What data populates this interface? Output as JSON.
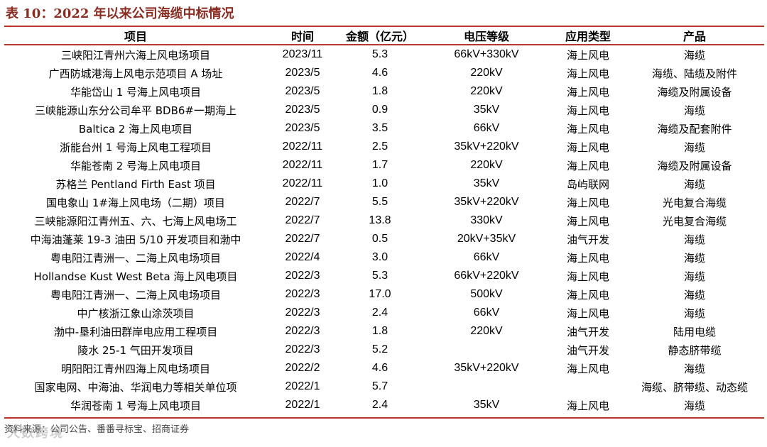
{
  "title": "表 10：2022 年以来公司海缆中标情况",
  "headers": [
    "项目",
    "时间",
    "金额（亿元）",
    "电压等级",
    "应用类型",
    "产品"
  ],
  "rows": [
    [
      "三峡阳江青州六海上风电场项目",
      "2023/11",
      "5.3",
      "66kV+330kV",
      "海上风电",
      "海缆"
    ],
    [
      "广西防城港海上风电示范项目 A 场址",
      "2023/5",
      "4.6",
      "220kV",
      "海上风电",
      "海缆、陆缆及附件"
    ],
    [
      "华能岱山 1 号海上风电项目",
      "2023/5",
      "1.8",
      "220kV",
      "海上风电",
      "海缆及附属设备"
    ],
    [
      "三峡能源山东分公司牟平 BDB6#一期海上",
      "2023/5",
      "0.9",
      "35kV",
      "海上风电",
      "海缆"
    ],
    [
      "Baltica 2 海上风电项目",
      "2023/5",
      "3.5",
      "66kV",
      "海上风电",
      "海缆及配套附件"
    ],
    [
      "浙能台州 1 号海上风电工程项目",
      "2022/11",
      "2.5",
      "35kV+220kV",
      "海上风电",
      "海缆"
    ],
    [
      "华能苍南 2 号海上风电项目",
      "2022/11",
      "1.7",
      "220kV",
      "海上风电",
      "海缆及附属设备"
    ],
    [
      "苏格兰 Pentland Firth East 项目",
      "2022/11",
      "1.0",
      "35kV",
      "岛屿联网",
      "海缆"
    ],
    [
      "国电象山 1#海上风电场（二期）项目",
      "2022/7",
      "5.5",
      "35kV+220kV",
      "海上风电",
      "光电复合海缆"
    ],
    [
      "三峡能源阳江青州五、六、七海上风电场工",
      "2022/7",
      "13.8",
      "330kV",
      "海上风电",
      "光电复合海缆"
    ],
    [
      "中海油蓬莱 19-3 油田 5/10 开发项目和渤中",
      "2022/7",
      "0.5",
      "20kV+35kV",
      "油气开发",
      "海缆"
    ],
    [
      "粤电阳江青洲一、二海上风电场项目",
      "2022/4",
      "3.0",
      "66kV",
      "海上风电",
      "海缆"
    ],
    [
      "Hollandse Kust West Beta 海上风电项目",
      "2022/3",
      "5.3",
      "66kV+220kV",
      "海上风电",
      "海缆"
    ],
    [
      "粤电阳江青洲一、二海上风电场项目",
      "2022/3",
      "17.0",
      "500kV",
      "海上风电",
      "海缆"
    ],
    [
      "中广核浙江象山涂茨项目",
      "2022/3",
      "2.4",
      "66kV",
      "海上风电",
      "海缆"
    ],
    [
      "渤中-垦利油田群岸电应用工程项目",
      "2022/3",
      "1.8",
      "220kV",
      "油气开发",
      "陆用电缆"
    ],
    [
      "陵水 25-1 气田开发项目",
      "2022/3",
      "5.2",
      "",
      "油气开发",
      "静态脐带缆"
    ],
    [
      "明阳阳江青州四海上风电场项目",
      "2022/2",
      "4.6",
      "35kV+220kV",
      "海上风电",
      "海缆"
    ],
    [
      "国家电网、中海油、华润电力等相关单位项",
      "2022/1",
      "5.7",
      "",
      "",
      "海缆、脐带缆、动态缆"
    ],
    [
      "华润苍南 1 号海上风电项目",
      "2022/1",
      "2.4",
      "35kV",
      "海上风电",
      "海缆"
    ]
  ],
  "source": "资料来源：公司公告、番番寻标宝、招商证券",
  "watermark": "大数跨境",
  "colors": {
    "accent": "#b5372b",
    "title": "#8b2c22"
  }
}
